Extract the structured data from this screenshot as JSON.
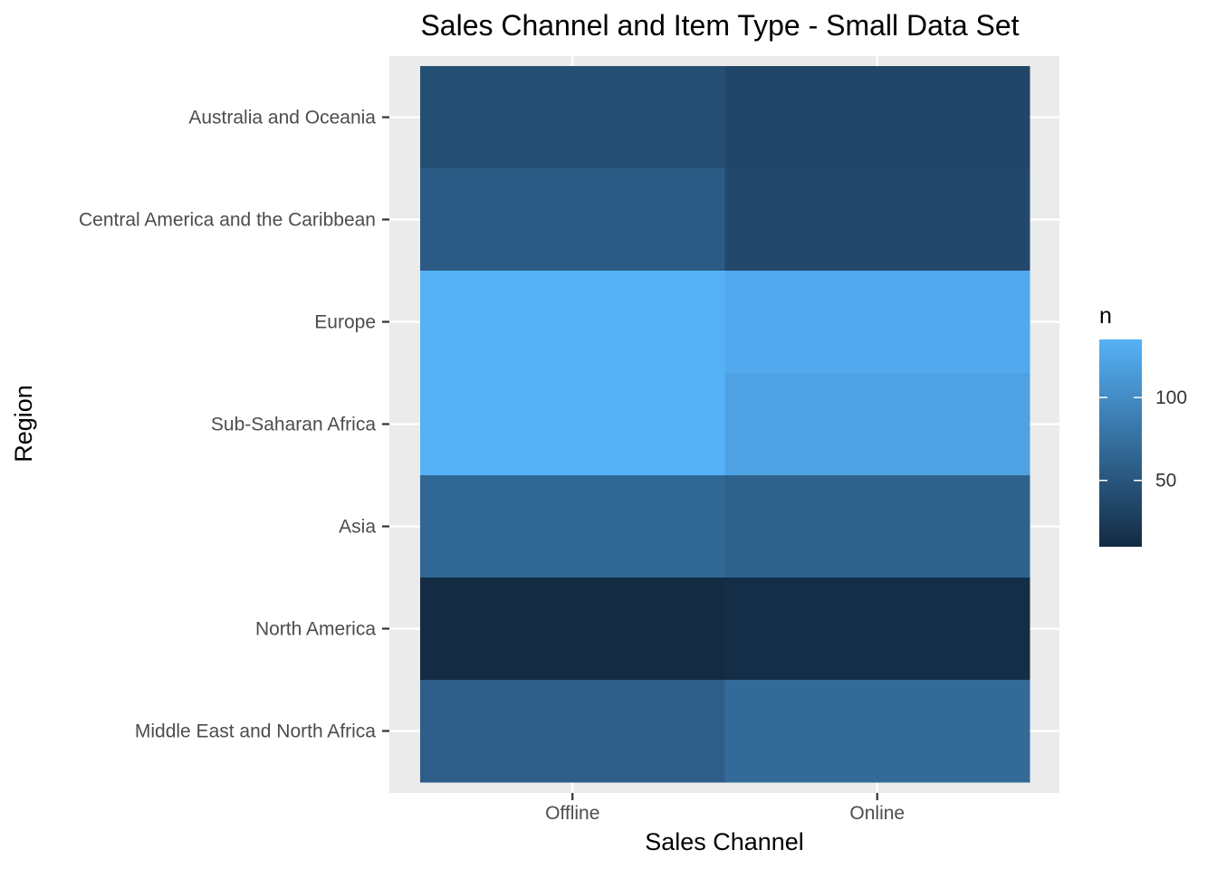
{
  "chart_data": {
    "type": "heatmap",
    "title": "Sales Channel and Item Type - Small Data Set",
    "xlabel": "Sales Channel",
    "ylabel": "Region",
    "x_categories": [
      "Offline",
      "Online"
    ],
    "y_categories": [
      "Australia and Oceania",
      "Central America and the Caribbean",
      "Europe",
      "Sub-Saharan Africa",
      "Asia",
      "North America",
      "Middle East and North Africa"
    ],
    "cells": [
      {
        "x": "Offline",
        "y": "Australia and Oceania",
        "n": 43
      },
      {
        "x": "Online",
        "y": "Australia and Oceania",
        "n": 36
      },
      {
        "x": "Offline",
        "y": "Central America and the Caribbean",
        "n": 55
      },
      {
        "x": "Online",
        "y": "Central America and the Caribbean",
        "n": 38
      },
      {
        "x": "Offline",
        "y": "Europe",
        "n": 135
      },
      {
        "x": "Online",
        "y": "Europe",
        "n": 128
      },
      {
        "x": "Offline",
        "y": "Sub-Saharan Africa",
        "n": 135
      },
      {
        "x": "Online",
        "y": "Sub-Saharan Africa",
        "n": 121
      },
      {
        "x": "Offline",
        "y": "Asia",
        "n": 66
      },
      {
        "x": "Online",
        "y": "Asia",
        "n": 61
      },
      {
        "x": "Offline",
        "y": "North America",
        "n": 10
      },
      {
        "x": "Online",
        "y": "North America",
        "n": 13
      },
      {
        "x": "Offline",
        "y": "Middle East and North Africa",
        "n": 58
      },
      {
        "x": "Online",
        "y": "Middle East and North Africa",
        "n": 69
      }
    ],
    "legend": {
      "title": "n",
      "position": "right",
      "min": 10,
      "max": 135,
      "ticks": [
        50,
        100
      ],
      "low_color": "#132b43",
      "high_color": "#56b1f7"
    },
    "grid": true,
    "panel_background": "#ebebeb",
    "grid_color": "#ffffff"
  }
}
